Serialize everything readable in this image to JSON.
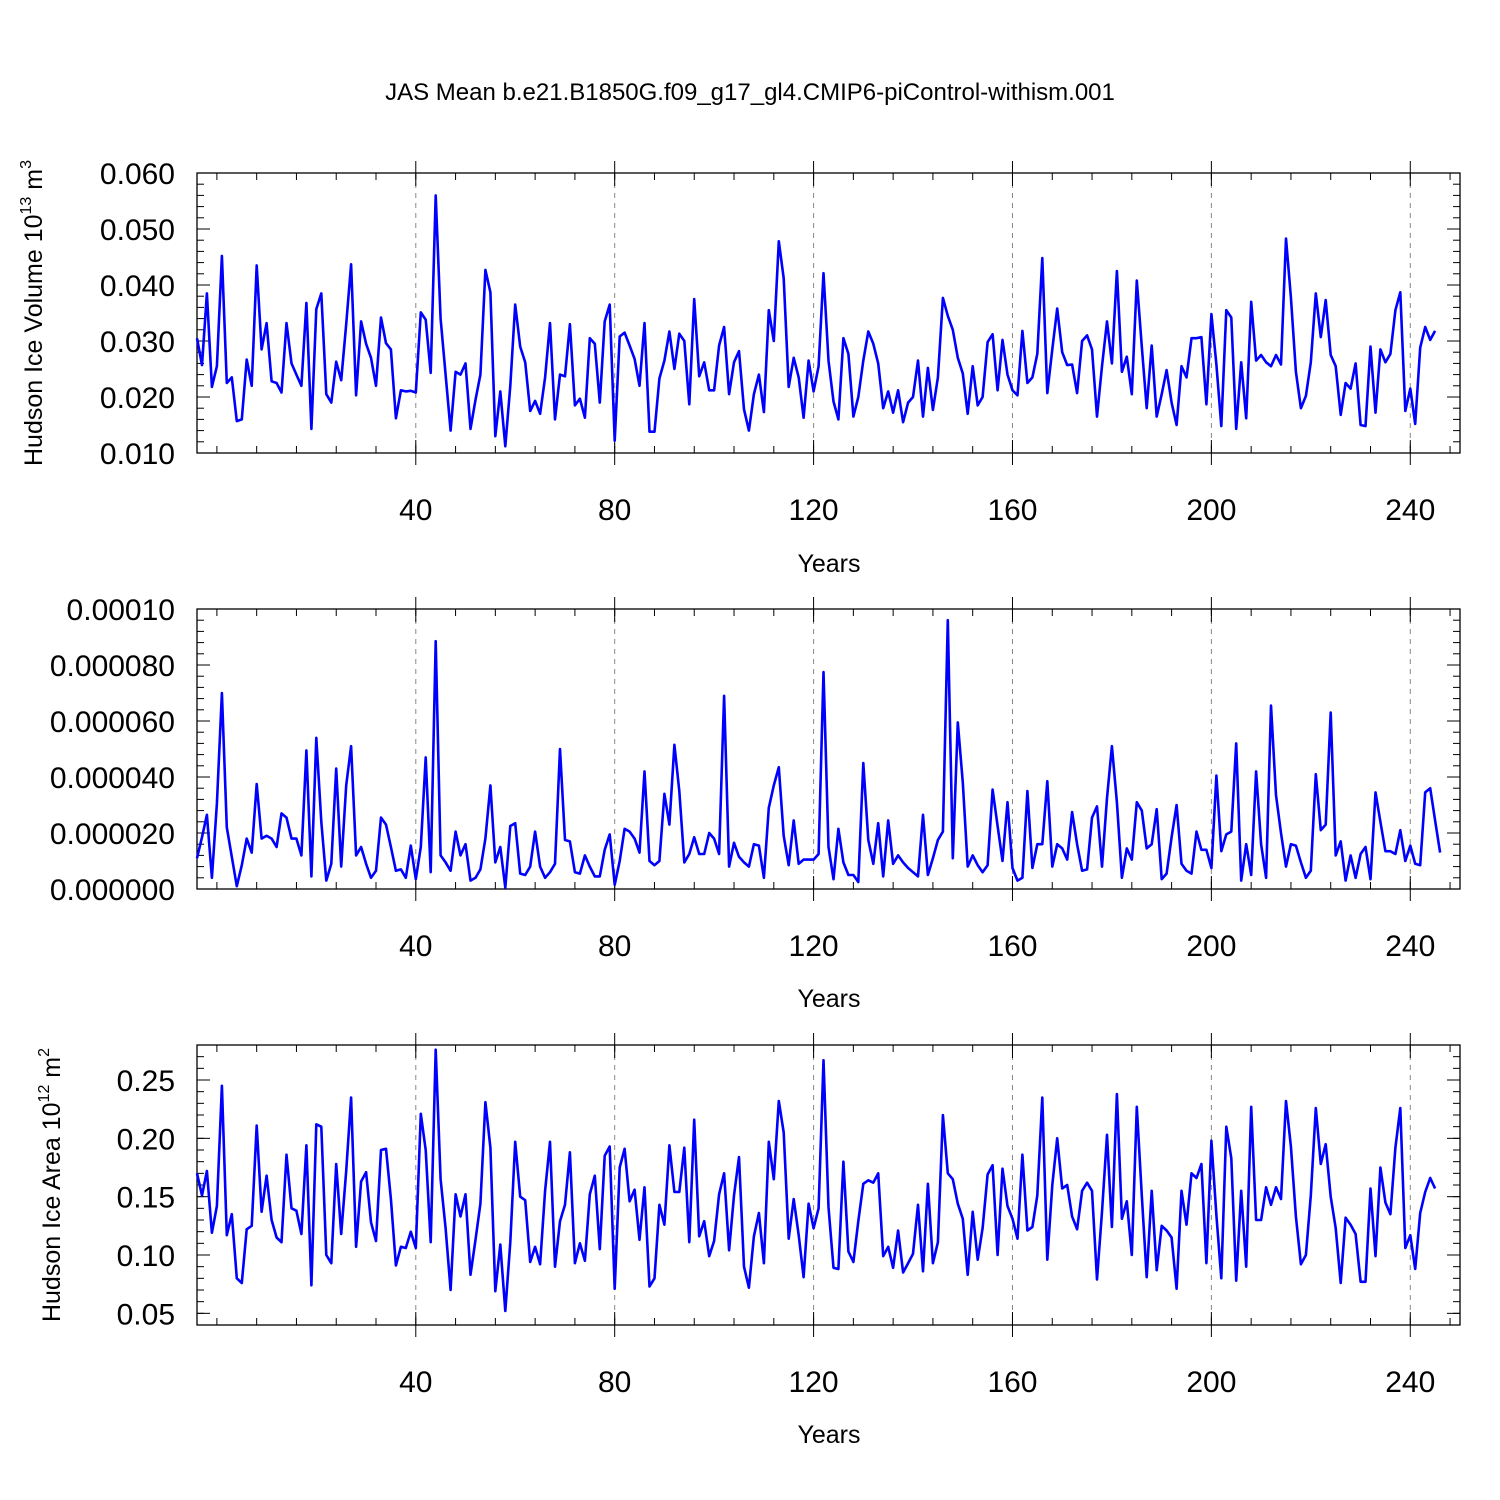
{
  "chart_data": {
    "title": "JAS Mean b.e21.B1850G.f09_g17_gl4.CMIP6-piControl-withism.001",
    "panels": [
      {
        "type": "line",
        "ylabel": "Hudson Ice Volume 10",
        "ylabel_sup": "13",
        "ylabel_unit": " m",
        "ylabel_unit_sup": "3",
        "xlabel": "Years",
        "xlim": [
          -4,
          250
        ],
        "ylim": [
          0.01,
          0.06
        ],
        "yticks": [
          0.01,
          0.02,
          0.03,
          0.04,
          0.05,
          0.06
        ],
        "ytick_labels": [
          "0.010",
          "0.020",
          "0.030",
          "0.040",
          "0.050",
          "0.060"
        ],
        "yminor_step": 0.002,
        "xticks": [
          40,
          80,
          120,
          160,
          200,
          240
        ],
        "xtick_labels": [
          "40",
          "80",
          "120",
          "160",
          "200",
          "240"
        ],
        "xminor_step": 8,
        "grid": "x-dashed",
        "series": [
          {
            "color": "#0000ff",
            "x0": -4,
            "values": [
              0.0305,
              0.0257,
              0.0385,
              0.0218,
              0.0255,
              0.0452,
              0.0225,
              0.0235,
              0.0157,
              0.016,
              0.0267,
              0.022,
              0.0435,
              0.0285,
              0.0332,
              0.0228,
              0.0225,
              0.0208,
              0.0332,
              0.026,
              0.024,
              0.022,
              0.0368,
              0.0143,
              0.0357,
              0.0385,
              0.0205,
              0.019,
              0.0263,
              0.023,
              0.033,
              0.0437,
              0.0203,
              0.0335,
              0.0295,
              0.027,
              0.022,
              0.0342,
              0.0296,
              0.0285,
              0.0162,
              0.0212,
              0.021,
              0.0211,
              0.0208,
              0.0351,
              0.0338,
              0.0243,
              0.056,
              0.034,
              0.024,
              0.014,
              0.0245,
              0.024,
              0.026,
              0.0143,
              0.0195,
              0.024,
              0.0427,
              0.0387,
              0.013,
              0.021,
              0.0112,
              0.022,
              0.0365,
              0.029,
              0.0262,
              0.0175,
              0.0193,
              0.017,
              0.0235,
              0.0332,
              0.016,
              0.024,
              0.0237,
              0.033,
              0.0185,
              0.0197,
              0.0163,
              0.0305,
              0.0295,
              0.019,
              0.0335,
              0.0365,
              0.0122,
              0.0308,
              0.0315,
              0.0292,
              0.0268,
              0.022,
              0.0332,
              0.0138,
              0.0138,
              0.0233,
              0.0265,
              0.0317,
              0.025,
              0.0313,
              0.03,
              0.0187,
              0.0375,
              0.0237,
              0.0262,
              0.0212,
              0.0212,
              0.0292,
              0.0325,
              0.0205,
              0.0262,
              0.0282,
              0.0178,
              0.014,
              0.0205,
              0.024,
              0.0173,
              0.0355,
              0.03,
              0.0478,
              0.0412,
              0.0218,
              0.027,
              0.0235,
              0.0163,
              0.0265,
              0.021,
              0.0255,
              0.0421,
              0.0265,
              0.0192,
              0.016,
              0.0305,
              0.0277,
              0.0165,
              0.02,
              0.0265,
              0.0317,
              0.0295,
              0.026,
              0.018,
              0.021,
              0.0172,
              0.0212,
              0.0155,
              0.019,
              0.02,
              0.0265,
              0.0165,
              0.0252,
              0.0177,
              0.0235,
              0.0377,
              0.0345,
              0.032,
              0.027,
              0.0242,
              0.017,
              0.0255,
              0.0185,
              0.02,
              0.0298,
              0.0312,
              0.0212,
              0.0302,
              0.024,
              0.0212,
              0.0203,
              0.0318,
              0.0225,
              0.0235,
              0.0277,
              0.0448,
              0.0207,
              0.0285,
              0.0358,
              0.028,
              0.0257,
              0.0258,
              0.0207,
              0.03,
              0.031,
              0.0285,
              0.0165,
              0.0255,
              0.0335,
              0.026,
              0.0425,
              0.0245,
              0.0272,
              0.0205,
              0.0408,
              0.029,
              0.018,
              0.0292,
              0.0165,
              0.0205,
              0.0248,
              0.019,
              0.015,
              0.0255,
              0.0235,
              0.0305,
              0.0305,
              0.0307,
              0.0187,
              0.0348,
              0.0258,
              0.0148,
              0.0355,
              0.0342,
              0.0143,
              0.0262,
              0.0162,
              0.037,
              0.0265,
              0.0275,
              0.0262,
              0.0255,
              0.0275,
              0.0258,
              0.0483,
              0.0378,
              0.0245,
              0.018,
              0.0202,
              0.0262,
              0.0385,
              0.0307,
              0.0373,
              0.0275,
              0.0255,
              0.0168,
              0.0225,
              0.0215,
              0.026,
              0.015,
              0.0148,
              0.029,
              0.0172,
              0.0285,
              0.0262,
              0.0277,
              0.0355,
              0.0387,
              0.0175,
              0.0215,
              0.0152,
              0.0288,
              0.0325,
              0.0302,
              0.0318
            ]
          }
        ]
      },
      {
        "type": "line",
        "ylabel": "",
        "xlabel": "Years",
        "xlim": [
          -4,
          250
        ],
        "ylim": [
          0.0,
          0.0001
        ],
        "yticks": [
          0.0,
          2e-05,
          4e-05,
          6e-05,
          8e-05,
          0.0001
        ],
        "ytick_labels": [
          "0.000000",
          "0.000020",
          "0.000040",
          "0.000060",
          "0.000080",
          "0.00010"
        ],
        "yminor_step": 4e-06,
        "xticks": [
          40,
          80,
          120,
          160,
          200,
          240
        ],
        "xtick_labels": [
          "40",
          "80",
          "120",
          "160",
          "200",
          "240"
        ],
        "xminor_step": 8,
        "grid": "x-dashed",
        "series": [
          {
            "color": "#0000ff",
            "x0": -4,
            "values": [
              1.1e-05,
              1.85e-05,
              2.65e-05,
              4e-06,
              3.05e-05,
              7e-05,
              2.2e-05,
              1.15e-05,
              1e-06,
              8.5e-06,
              1.8e-05,
              1.3e-05,
              3.75e-05,
              1.8e-05,
              1.9e-05,
              1.8e-05,
              1.5e-05,
              2.7e-05,
              2.55e-05,
              1.8e-05,
              1.8e-05,
              1.2e-05,
              4.95e-05,
              4.5e-06,
              5.4e-05,
              2.4e-05,
              3e-06,
              9e-06,
              4.3e-05,
              8e-06,
              3.7e-05,
              5.1e-05,
              1.2e-05,
              1.5e-05,
              9e-06,
              4e-06,
              6.5e-06,
              2.55e-05,
              2.3e-05,
              1.5e-05,
              6.5e-06,
              7e-06,
              4e-06,
              1.55e-05,
              3.5e-06,
              1.5e-05,
              4.7e-05,
              6e-06,
              8.85e-05,
              1.2e-05,
              9.5e-06,
              6.5e-06,
              2.05e-05,
              1.2e-05,
              1.6e-05,
              3e-06,
              4e-06,
              7e-06,
              1.8e-05,
              3.7e-05,
              9.5e-06,
              1.5e-05,
              5e-07,
              2.25e-05,
              2.35e-05,
              5.5e-06,
              5e-06,
              8e-06,
              2.05e-05,
              8e-06,
              4e-06,
              6e-06,
              9e-06,
              5e-05,
              1.75e-05,
              1.7e-05,
              6e-06,
              5.5e-06,
              1.2e-05,
              8e-06,
              4.5e-06,
              4.5e-06,
              1.4e-05,
              1.95e-05,
              1.5e-06,
              1e-05,
              2.15e-05,
              2.05e-05,
              1.8e-05,
              1.3e-05,
              4.2e-05,
              1e-05,
              8.5e-06,
              1e-05,
              3.4e-05,
              2.3e-05,
              5.15e-05,
              3.5e-05,
              9.5e-06,
              1.25e-05,
              1.85e-05,
              1.25e-05,
              1.25e-05,
              2e-05,
              1.8e-05,
              1.25e-05,
              6.9e-05,
              8e-06,
              1.65e-05,
              1.15e-05,
              9.5e-06,
              8e-06,
              1.6e-05,
              1.55e-05,
              4e-06,
              2.9e-05,
              3.7e-05,
              4.35e-05,
              1.9e-05,
              8.5e-06,
              2.45e-05,
              9e-06,
              1.05e-05,
              1.05e-05,
              1.05e-05,
              1.25e-05,
              7.75e-05,
              1.5e-05,
              3.5e-06,
              2.15e-05,
              9.5e-06,
              5e-06,
              5e-06,
              2.5e-06,
              4.5e-05,
              1.75e-05,
              9e-06,
              2.35e-05,
              4.5e-06,
              2.45e-05,
              9e-06,
              1.2e-05,
              9.5e-06,
              7.5e-06,
              6e-06,
              4.5e-06,
              2.65e-05,
              5e-06,
              1.1e-05,
              1.75e-05,
              2.05e-05,
              9.6e-05,
              1.1e-05,
              5.95e-05,
              3.8e-05,
              8e-06,
              1.2e-05,
              8.5e-06,
              6e-06,
              8.5e-06,
              3.55e-05,
              2.25e-05,
              1e-05,
              3.1e-05,
              7.5e-06,
              3e-06,
              4e-06,
              3.5e-05,
              7.5e-06,
              1.6e-05,
              1.6e-05,
              3.85e-05,
              8e-06,
              1.6e-05,
              1.45e-05,
              1.05e-05,
              2.75e-05,
              1.6e-05,
              6.5e-06,
              7e-06,
              2.55e-05,
              2.95e-05,
              8e-06,
              3.25e-05,
              5.1e-05,
              3.1e-05,
              4e-06,
              1.45e-05,
              1.05e-05,
              3.1e-05,
              2.8e-05,
              1.45e-05,
              1.6e-05,
              2.85e-05,
              3.5e-06,
              5.5e-06,
              1.85e-05,
              3e-05,
              9e-06,
              6.5e-06,
              5.5e-06,
              2.05e-05,
              1.4e-05,
              1.4e-05,
              7.5e-06,
              4.05e-05,
              1.35e-05,
              1.95e-05,
              2.05e-05,
              5.2e-05,
              3e-06,
              1.6e-05,
              5e-06,
              4.2e-05,
              1.6e-05,
              4e-06,
              6.55e-05,
              3.35e-05,
              2e-05,
              8e-06,
              1.6e-05,
              1.55e-05,
              9.5e-06,
              4e-06,
              6.5e-06,
              4.1e-05,
              2.1e-05,
              2.3e-05,
              6.3e-05,
              1.2e-05,
              1.7e-05,
              3e-06,
              1.2e-05,
              4e-06,
              1.25e-05,
              1.5e-05,
              3.5e-06,
              3.45e-05,
              2.4e-05,
              1.35e-05,
              1.35e-05,
              1.25e-05,
              2.1e-05,
              1e-05,
              1.55e-05,
              9e-06,
              8.5e-06,
              3.45e-05,
              3.6e-05,
              2.45e-05,
              1.3e-05
            ]
          }
        ]
      },
      {
        "type": "line",
        "ylabel": "Hudson Ice Area 10",
        "ylabel_sup": "12",
        "ylabel_unit": " m",
        "ylabel_unit_sup": "2",
        "xlabel": "Years",
        "xlim": [
          -4,
          250
        ],
        "ylim": [
          0.04,
          0.28
        ],
        "yticks": [
          0.05,
          0.1,
          0.15,
          0.2,
          0.25
        ],
        "ytick_labels": [
          "0.05",
          "0.10",
          "0.15",
          "0.20",
          "0.25"
        ],
        "yminor_step": 0.01,
        "xticks": [
          40,
          80,
          120,
          160,
          200,
          240
        ],
        "xtick_labels": [
          "40",
          "80",
          "120",
          "160",
          "200",
          "240"
        ],
        "xminor_step": 8,
        "grid": "x-dashed",
        "series": [
          {
            "color": "#0000ff",
            "x0": -4,
            "values": [
              0.17,
              0.151,
              0.172,
              0.119,
              0.142,
              0.245,
              0.117,
              0.135,
              0.08,
              0.076,
              0.122,
              0.125,
              0.211,
              0.137,
              0.168,
              0.13,
              0.115,
              0.111,
              0.186,
              0.14,
              0.138,
              0.118,
              0.194,
              0.074,
              0.212,
              0.21,
              0.1,
              0.093,
              0.178,
              0.118,
              0.172,
              0.235,
              0.107,
              0.163,
              0.171,
              0.128,
              0.112,
              0.19,
              0.191,
              0.148,
              0.091,
              0.107,
              0.106,
              0.12,
              0.106,
              0.221,
              0.19,
              0.111,
              0.276,
              0.165,
              0.123,
              0.07,
              0.152,
              0.133,
              0.152,
              0.083,
              0.113,
              0.144,
              0.231,
              0.192,
              0.069,
              0.109,
              0.052,
              0.111,
              0.197,
              0.15,
              0.147,
              0.094,
              0.107,
              0.092,
              0.155,
              0.197,
              0.09,
              0.129,
              0.143,
              0.188,
              0.093,
              0.11,
              0.095,
              0.152,
              0.168,
              0.105,
              0.185,
              0.193,
              0.071,
              0.175,
              0.191,
              0.146,
              0.156,
              0.113,
              0.158,
              0.073,
              0.08,
              0.143,
              0.126,
              0.194,
              0.154,
              0.154,
              0.192,
              0.111,
              0.216,
              0.116,
              0.129,
              0.099,
              0.112,
              0.152,
              0.17,
              0.104,
              0.151,
              0.184,
              0.09,
              0.072,
              0.116,
              0.136,
              0.093,
              0.197,
              0.165,
              0.232,
              0.205,
              0.114,
              0.148,
              0.117,
              0.081,
              0.144,
              0.123,
              0.14,
              0.267,
              0.141,
              0.089,
              0.088,
              0.18,
              0.103,
              0.094,
              0.129,
              0.161,
              0.164,
              0.162,
              0.17,
              0.099,
              0.107,
              0.089,
              0.121,
              0.085,
              0.093,
              0.101,
              0.143,
              0.086,
              0.161,
              0.093,
              0.111,
              0.22,
              0.17,
              0.165,
              0.144,
              0.131,
              0.083,
              0.137,
              0.096,
              0.123,
              0.169,
              0.177,
              0.1,
              0.174,
              0.142,
              0.131,
              0.114,
              0.186,
              0.121,
              0.124,
              0.151,
              0.235,
              0.096,
              0.16,
              0.2,
              0.157,
              0.16,
              0.133,
              0.122,
              0.155,
              0.162,
              0.155,
              0.079,
              0.137,
              0.203,
              0.124,
              0.238,
              0.131,
              0.146,
              0.1,
              0.227,
              0.151,
              0.081,
              0.155,
              0.087,
              0.125,
              0.121,
              0.115,
              0.071,
              0.155,
              0.126,
              0.17,
              0.166,
              0.178,
              0.093,
              0.198,
              0.134,
              0.08,
              0.21,
              0.183,
              0.078,
              0.155,
              0.09,
              0.227,
              0.13,
              0.13,
              0.158,
              0.143,
              0.158,
              0.148,
              0.232,
              0.193,
              0.133,
              0.092,
              0.1,
              0.151,
              0.226,
              0.178,
              0.195,
              0.15,
              0.123,
              0.076,
              0.132,
              0.126,
              0.118,
              0.077,
              0.077,
              0.157,
              0.099,
              0.175,
              0.145,
              0.135,
              0.192,
              0.226,
              0.106,
              0.117,
              0.088,
              0.136,
              0.154,
              0.166,
              0.157
            ]
          }
        ]
      }
    ]
  }
}
